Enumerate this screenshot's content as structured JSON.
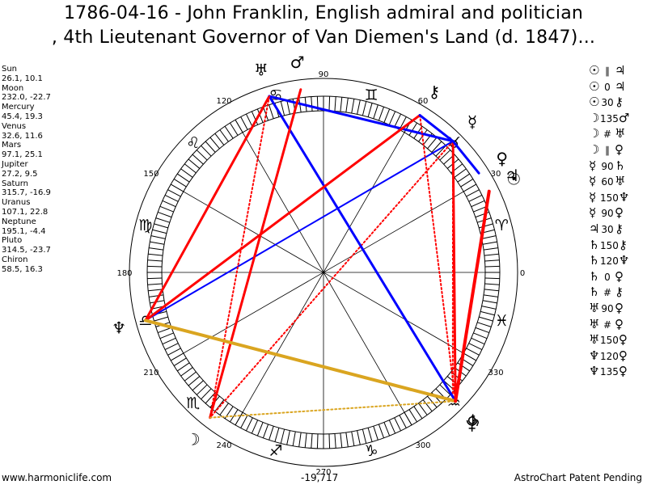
{
  "title_line1": "1786-04-16 - John Franklin, English admiral and politician",
  "title_line2": ", 4th Lieutenant Governor of Van Diemen's Land (d. 1847)...",
  "planets": [
    {
      "name": "Sun",
      "coords": "26.1, 10.1",
      "glyph": "☉",
      "longitude": 26.1
    },
    {
      "name": "Moon",
      "coords": "232.0, -22.7",
      "glyph": "☽",
      "longitude": 232.0
    },
    {
      "name": "Mercury",
      "coords": "45.4, 19.3",
      "glyph": "☿",
      "longitude": 45.4
    },
    {
      "name": "Venus",
      "coords": "32.6, 11.6",
      "glyph": "♀",
      "longitude": 32.6
    },
    {
      "name": "Mars",
      "coords": "97.1, 25.1",
      "glyph": "♂",
      "longitude": 97.1
    },
    {
      "name": "Jupiter",
      "coords": "27.2, 9.5",
      "glyph": "♃",
      "longitude": 27.2
    },
    {
      "name": "Saturn",
      "coords": "315.7, -16.9",
      "glyph": "♄",
      "longitude": 315.7
    },
    {
      "name": "Uranus",
      "coords": "107.1, 22.8",
      "glyph": "♅",
      "longitude": 107.1
    },
    {
      "name": "Neptune",
      "coords": "195.1, -4.4",
      "glyph": "♆",
      "longitude": 195.1
    },
    {
      "name": "Pluto",
      "coords": "314.5, -23.7",
      "glyph": "",
      "longitude": 314.5
    },
    {
      "name": "Chiron",
      "coords": "58.5, 16.3",
      "glyph": "⚷",
      "longitude": 58.5
    }
  ],
  "aspects": [
    {
      "p1": "☉",
      "sym": "∥",
      "p2": "♃",
      "color": "#0000ff"
    },
    {
      "p1": "☉",
      "sym": "0",
      "p2": "♃",
      "color": "#0000ff"
    },
    {
      "p1": "☉",
      "sym": "30",
      "p2": "⚷",
      "color": "#0000ff"
    },
    {
      "p1": "☽",
      "sym": "135",
      "p2": "♂",
      "color": "#ff0000"
    },
    {
      "p1": "☽",
      "sym": "#",
      "p2": "♅",
      "color": "#ff0000"
    },
    {
      "p1": "☽",
      "sym": "∥",
      "p2": "♀",
      "color": "#ff0000"
    },
    {
      "p1": "☿",
      "sym": "90",
      "p2": "♄",
      "color": "#ff0000"
    },
    {
      "p1": "☿",
      "sym": "60",
      "p2": "♅",
      "color": "#0000ff"
    },
    {
      "p1": "☿",
      "sym": "150",
      "p2": "♆",
      "color": "#daa520"
    },
    {
      "p1": "☿",
      "sym": "90",
      "p2": "♀",
      "color": "#ff0000"
    },
    {
      "p1": "♃",
      "sym": "30",
      "p2": "⚷",
      "color": "#0000ff"
    },
    {
      "p1": "♄",
      "sym": "150",
      "p2": "⚷",
      "color": "#daa520"
    },
    {
      "p1": "♄",
      "sym": "120",
      "p2": "♆",
      "color": "#0000ff"
    },
    {
      "p1": "♄",
      "sym": "0",
      "p2": "♀",
      "color": "#0000ff"
    },
    {
      "p1": "♄",
      "sym": "#",
      "p2": "⚷",
      "color": "#ff0000"
    },
    {
      "p1": "♅",
      "sym": "90",
      "p2": "♀",
      "color": "#ff0000"
    },
    {
      "p1": "♅",
      "sym": "#",
      "p2": "♀",
      "color": "#ff0000"
    },
    {
      "p1": "♅",
      "sym": "150",
      "p2": "♀",
      "color": "#daa520"
    },
    {
      "p1": "♆",
      "sym": "120",
      "p2": "♀",
      "color": "#0000ff"
    },
    {
      "p1": "♆",
      "sym": "135",
      "p2": "♀",
      "color": "#ff0000"
    }
  ],
  "degree_labels": [
    "0",
    "30",
    "60",
    "90",
    "120",
    "150",
    "180",
    "210",
    "240",
    "270",
    "300",
    "330"
  ],
  "zodiac": [
    {
      "sign": "aries",
      "glyph": "♈",
      "longitude": 15
    },
    {
      "sign": "taurus",
      "glyph": "♉",
      "longitude": 45
    },
    {
      "sign": "gemini",
      "glyph": "♊",
      "longitude": 75
    },
    {
      "sign": "cancer",
      "glyph": "♋",
      "longitude": 105
    },
    {
      "sign": "leo",
      "glyph": "♌",
      "longitude": 135
    },
    {
      "sign": "virgo",
      "glyph": "♍",
      "longitude": 165
    },
    {
      "sign": "libra",
      "glyph": "♎",
      "longitude": 195
    },
    {
      "sign": "scorpio",
      "glyph": "♏",
      "longitude": 225
    },
    {
      "sign": "sagittarius",
      "glyph": "♐",
      "longitude": 255
    },
    {
      "sign": "capricorn",
      "glyph": "♑",
      "longitude": 285
    },
    {
      "sign": "aquarius",
      "glyph": "♒",
      "longitude": 315
    },
    {
      "sign": "pisces",
      "glyph": "♓",
      "longitude": 345
    }
  ],
  "aspect_lines": [
    {
      "from": "Mercury",
      "to": "Saturn",
      "color": "#ff0000",
      "style": "solid",
      "width": 3
    },
    {
      "from": "Mercury",
      "to": "Moon",
      "color": "#ff0000",
      "style": "dotted",
      "width": 2
    },
    {
      "from": "Mercury",
      "to": "Uranus",
      "color": "#0000ff",
      "style": "solid",
      "width": 3
    },
    {
      "from": "Mercury",
      "to": "Neptune",
      "color": "#0000ff",
      "style": "solid",
      "width": 2
    },
    {
      "from": "Mercury",
      "to": "Pluto",
      "color": "#ff0000",
      "style": "dotted",
      "width": 2
    },
    {
      "from": "Uranus",
      "to": "Neptune",
      "color": "#ff0000",
      "style": "solid",
      "width": 3
    },
    {
      "from": "Uranus",
      "to": "Saturn",
      "color": "#0000ff",
      "style": "solid",
      "width": 3
    },
    {
      "from": "Uranus",
      "to": "Moon",
      "color": "#ff0000",
      "style": "dotted",
      "width": 2
    },
    {
      "from": "Mars",
      "to": "Moon",
      "color": "#ff0000",
      "style": "solid",
      "width": 3
    },
    {
      "from": "Chiron",
      "to": "Neptune",
      "color": "#ff0000",
      "style": "solid",
      "width": 3
    },
    {
      "from": "Chiron",
      "to": "Saturn",
      "color": "#ff0000",
      "style": "dotted",
      "width": 2
    },
    {
      "from": "Chiron",
      "to": "Mercury",
      "color": "#0000ff",
      "style": "solid",
      "width": 3
    },
    {
      "from": "Neptune",
      "to": "Saturn",
      "color": "#daa520",
      "style": "solid",
      "width": 4
    },
    {
      "from": "Moon",
      "to": "Saturn",
      "color": "#daa520",
      "style": "dotted",
      "width": 2
    },
    {
      "from": "Venus",
      "to": "Mercury",
      "color": "#0000ff",
      "style": "solid",
      "width": 3
    },
    {
      "from": "Sun",
      "to": "Saturn",
      "color": "#ff0000",
      "style": "solid",
      "width": 4
    }
  ],
  "footer": {
    "left": "www.harmoniclife.com",
    "mid": "-19,717",
    "right": "AstroChart Patent Pending"
  },
  "colors": {
    "red": "#ff0000",
    "blue": "#0000ff",
    "gold": "#daa520"
  }
}
